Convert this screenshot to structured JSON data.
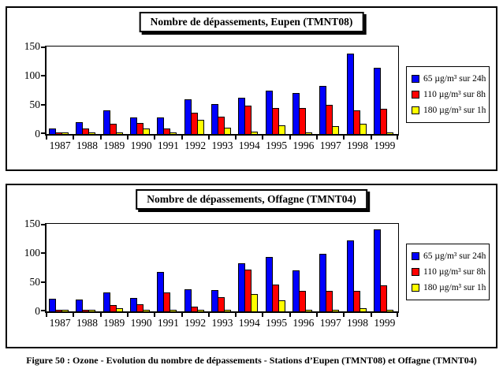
{
  "figure_caption": "Figure 50 : Ozone - Evolution du nombre de dépassements - Stations d’Eupen (TMNT08) et Offagne (TMNT04)",
  "colors": {
    "bar_blue": "#0000ff",
    "bar_red": "#ff0000",
    "bar_yellow": "#ffff00",
    "axis": "#000000",
    "background": "#ffffff"
  },
  "chart_data": [
    {
      "type": "bar",
      "title": "Nombre de dépassements, Eupen (TMNT08)",
      "categories": [
        "1987",
        "1988",
        "1989",
        "1990",
        "1991",
        "1992",
        "1993",
        "1994",
        "1995",
        "1996",
        "1997",
        "1998",
        "1999"
      ],
      "series": [
        {
          "name": "65 µg/m³ sur 24h",
          "color": "#0000ff",
          "values": [
            10,
            20,
            40,
            29,
            28,
            60,
            52,
            62,
            75,
            70,
            83,
            138,
            114
          ]
        },
        {
          "name": "110 µg/m³ sur 8h",
          "color": "#ff0000",
          "values": [
            3,
            10,
            17,
            19,
            10,
            36,
            30,
            48,
            44,
            45,
            50,
            40,
            43
          ]
        },
        {
          "name": "180 µg/m³ sur 1h",
          "color": "#ffff00",
          "values": [
            1,
            1,
            1,
            10,
            1,
            24,
            11,
            4,
            15,
            2,
            13,
            18,
            3
          ]
        }
      ],
      "xlabel": "",
      "ylabel": "",
      "ylim": [
        0,
        150
      ],
      "yticks": [
        0,
        50,
        100,
        150
      ],
      "grid": false,
      "legend_position": "right"
    },
    {
      "type": "bar",
      "title": "Nombre de dépassements, Offagne (TMNT04)",
      "categories": [
        "1987",
        "1988",
        "1989",
        "1990",
        "1991",
        "1992",
        "1993",
        "1994",
        "1995",
        "1996",
        "1997",
        "1998",
        "1999"
      ],
      "series": [
        {
          "name": "65 µg/m³ sur 24h",
          "color": "#0000ff",
          "values": [
            22,
            20,
            32,
            23,
            68,
            38,
            36,
            83,
            93,
            70,
            98,
            121,
            141
          ]
        },
        {
          "name": "110 µg/m³ sur 8h",
          "color": "#ff0000",
          "values": [
            3,
            1,
            11,
            12,
            33,
            8,
            25,
            72,
            46,
            35,
            35,
            35,
            44
          ]
        },
        {
          "name": "180 µg/m³ sur 1h",
          "color": "#ffff00",
          "values": [
            0,
            0,
            5,
            0,
            3,
            0,
            1,
            30,
            19,
            0,
            0,
            6,
            2
          ]
        }
      ],
      "xlabel": "",
      "ylabel": "",
      "ylim": [
        0,
        150
      ],
      "yticks": [
        0,
        50,
        100,
        150
      ],
      "grid": false,
      "legend_position": "right"
    }
  ]
}
